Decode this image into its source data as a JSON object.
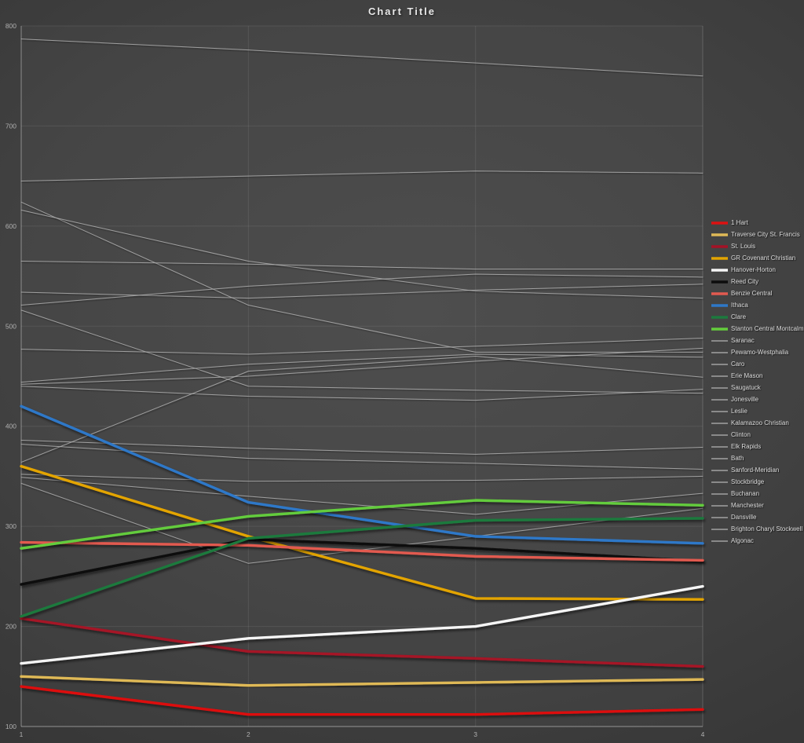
{
  "chart_data": {
    "type": "line",
    "title": "Chart Title",
    "xlabel": "",
    "ylabel": "",
    "x": [
      1,
      2,
      3,
      4
    ],
    "x_tick_labels": [
      "1",
      "2",
      "3",
      "4"
    ],
    "y_ticks": [
      100,
      200,
      300,
      400,
      500,
      600,
      700,
      800
    ],
    "ylim": [
      100,
      800
    ],
    "grid": true,
    "legend_position": "right",
    "colors": {
      "background_center": "#4a4a4a",
      "background_edge": "#232323",
      "gridline": "#4f4f4f",
      "axis_text": "#b0b0b0",
      "legend_text": "#dcdcdc",
      "gray_series": "#b5b5b5",
      "title_text": "#e9e9e9"
    },
    "series": [
      {
        "name": "1 Hart",
        "color": "#dd1111",
        "emphasis": true,
        "values": [
          140,
          112,
          112,
          117
        ]
      },
      {
        "name": "Traverse City St. Francis",
        "color": "#dfb957",
        "emphasis": true,
        "values": [
          150,
          141,
          144,
          147
        ]
      },
      {
        "name": "St. Louis",
        "color": "#a51226",
        "emphasis": true,
        "values": [
          208,
          175,
          168,
          160
        ]
      },
      {
        "name": "GR Covenant Christian",
        "color": "#e3a400",
        "emphasis": true,
        "values": [
          360,
          290,
          228,
          227
        ]
      },
      {
        "name": "Hanover-Horton",
        "color": "#f5f5f5",
        "emphasis": true,
        "values": [
          163,
          188,
          200,
          240
        ]
      },
      {
        "name": "Reed City",
        "color": "#0d0d0d",
        "emphasis": true,
        "values": [
          242,
          287,
          278,
          265
        ]
      },
      {
        "name": "Benzie Central",
        "color": "#e25a50",
        "emphasis": true,
        "values": [
          284,
          281,
          270,
          266
        ]
      },
      {
        "name": "Ithaca",
        "color": "#2e78c8",
        "emphasis": true,
        "values": [
          420,
          324,
          290,
          283
        ]
      },
      {
        "name": "Clare",
        "color": "#1d7a3e",
        "emphasis": true,
        "values": [
          210,
          288,
          306,
          308
        ]
      },
      {
        "name": "Stanton Central Montcalm",
        "color": "#64cc3c",
        "emphasis": true,
        "values": [
          278,
          310,
          326,
          321
        ]
      },
      {
        "name": "Saranac",
        "color": "#b5b5b5",
        "emphasis": false,
        "values": [
          787,
          776,
          763,
          750
        ]
      },
      {
        "name": "Pewamo-Westphalia",
        "color": "#b5b5b5",
        "emphasis": false,
        "values": [
          645,
          650,
          655,
          653
        ]
      },
      {
        "name": "Caro",
        "color": "#b5b5b5",
        "emphasis": false,
        "values": [
          624,
          521,
          474,
          474
        ]
      },
      {
        "name": "Erie Mason",
        "color": "#b5b5b5",
        "emphasis": false,
        "values": [
          616,
          565,
          535,
          528
        ]
      },
      {
        "name": "Saugatuck",
        "color": "#b5b5b5",
        "emphasis": false,
        "values": [
          565,
          562,
          557,
          557
        ]
      },
      {
        "name": "Jonesville",
        "color": "#b5b5b5",
        "emphasis": false,
        "values": [
          534,
          528,
          536,
          542
        ]
      },
      {
        "name": "Leslie",
        "color": "#b5b5b5",
        "emphasis": false,
        "values": [
          521,
          540,
          552,
          549
        ]
      },
      {
        "name": "Kalamazoo Christian",
        "color": "#b5b5b5",
        "emphasis": false,
        "values": [
          516,
          440,
          436,
          433
        ]
      },
      {
        "name": "Clinton",
        "color": "#b5b5b5",
        "emphasis": false,
        "values": [
          477,
          472,
          480,
          488
        ]
      },
      {
        "name": "Elk Rapids",
        "color": "#b5b5b5",
        "emphasis": false,
        "values": [
          444,
          462,
          472,
          469
        ]
      },
      {
        "name": "Bath",
        "color": "#b5b5b5",
        "emphasis": false,
        "values": [
          440,
          430,
          426,
          437
        ]
      },
      {
        "name": "Sanford-Meridian",
        "color": "#b5b5b5",
        "emphasis": false,
        "values": [
          442,
          450,
          465,
          478
        ]
      },
      {
        "name": "Stockbridge",
        "color": "#b5b5b5",
        "emphasis": false,
        "values": [
          386,
          378,
          372,
          379
        ]
      },
      {
        "name": "Buchanan",
        "color": "#b5b5b5",
        "emphasis": false,
        "values": [
          364,
          455,
          470,
          449
        ]
      },
      {
        "name": "Manchester",
        "color": "#b5b5b5",
        "emphasis": false,
        "values": [
          382,
          368,
          363,
          357
        ]
      },
      {
        "name": "Dansville",
        "color": "#b5b5b5",
        "emphasis": false,
        "values": [
          352,
          345,
          346,
          350
        ]
      },
      {
        "name": "Brighton Charyl Stockwell",
        "color": "#b5b5b5",
        "emphasis": false,
        "values": [
          343,
          263,
          290,
          318
        ]
      },
      {
        "name": "Algonac",
        "color": "#b5b5b5",
        "emphasis": false,
        "values": [
          349,
          330,
          312,
          333
        ]
      }
    ]
  }
}
